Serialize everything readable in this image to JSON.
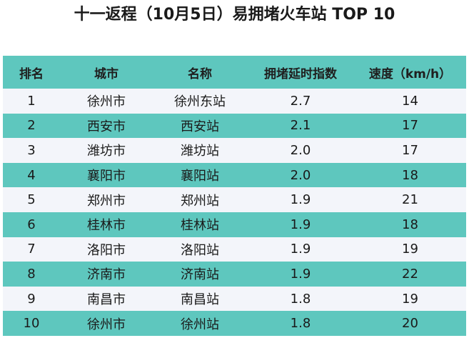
{
  "title": "十一返程（10月5日）易拥堵火车站 TOP 10",
  "colors": {
    "header_bg": "#5ec7be",
    "row_alt_bg": "#5ec7be",
    "row_bg": "#f3f5fa"
  },
  "table": {
    "headers": [
      "排名",
      "城市",
      "名称",
      "拥堵延时指数",
      "速度（km/h）"
    ],
    "rows": [
      [
        "1",
        "徐州市",
        "徐州东站",
        "2.7",
        "14"
      ],
      [
        "2",
        "西安市",
        "西安站",
        "2.1",
        "17"
      ],
      [
        "3",
        "潍坊市",
        "潍坊站",
        "2.0",
        "17"
      ],
      [
        "4",
        "襄阳市",
        "襄阳站",
        "2.0",
        "18"
      ],
      [
        "5",
        "郑州市",
        "郑州站",
        "1.9",
        "21"
      ],
      [
        "6",
        "桂林市",
        "桂林站",
        "1.9",
        "18"
      ],
      [
        "7",
        "洛阳市",
        "洛阳站",
        "1.9",
        "19"
      ],
      [
        "8",
        "济南市",
        "济南站",
        "1.9",
        "22"
      ],
      [
        "9",
        "南昌市",
        "南昌站",
        "1.8",
        "19"
      ],
      [
        "10",
        "徐州市",
        "徐州站",
        "1.8",
        "20"
      ]
    ]
  }
}
